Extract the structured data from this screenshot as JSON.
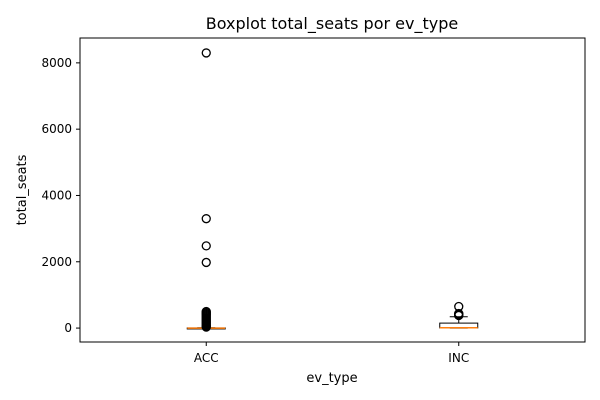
{
  "chart_data": {
    "type": "box",
    "title": "Boxplot total_seats por ev_type",
    "xlabel": "ev_type",
    "ylabel": "total_seats",
    "ylim": [
      -420,
      8750
    ],
    "yticks": [
      0,
      2000,
      4000,
      6000,
      8000
    ],
    "categories": [
      "ACC",
      "INC"
    ],
    "boxes": [
      {
        "category": "ACC",
        "whisker_low": 0,
        "q1": 0,
        "median": 0,
        "q3": 4,
        "whisker_high": 10,
        "outliers": [
          8300,
          3300,
          2480,
          1980,
          500,
          470,
          440,
          410,
          380,
          350,
          320,
          290,
          260,
          230,
          200,
          170,
          140,
          110,
          80,
          50,
          30
        ]
      },
      {
        "category": "INC",
        "whisker_low": 0,
        "q1": 5,
        "median": 10,
        "q3": 150,
        "whisker_high": 340,
        "outliers": [
          650,
          440,
          420,
          400,
          380
        ]
      }
    ],
    "colors": {
      "median": "#ff7f0e",
      "box": "#000000",
      "outlier": "#000000"
    }
  }
}
